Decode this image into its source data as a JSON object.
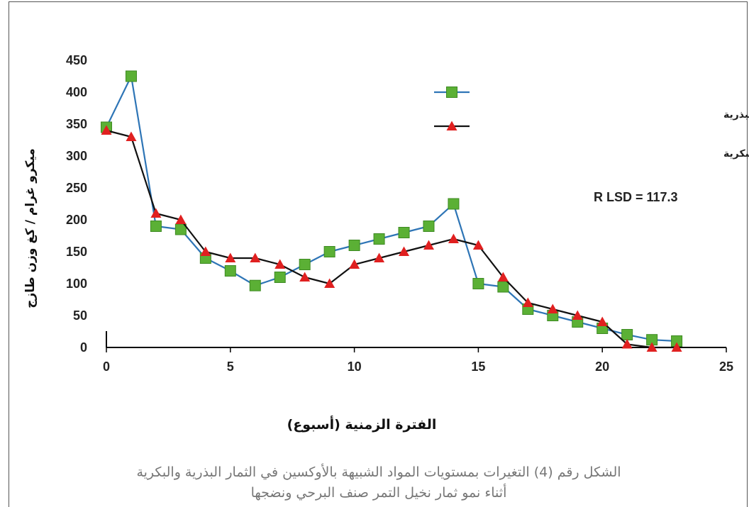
{
  "chart_data": {
    "type": "line",
    "xlabel": "الفترة الزمنية (أسبوع)",
    "ylabel": "ميكرو غرام / كغ وزن طازج",
    "xlim": [
      0,
      25
    ],
    "ylim": [
      0,
      450
    ],
    "x_ticks": [
      "0",
      "5",
      "10",
      "15",
      "20",
      "25"
    ],
    "y_ticks": [
      "0",
      "50",
      "100",
      "150",
      "200",
      "250",
      "300",
      "350",
      "400",
      "450"
    ],
    "grid": false,
    "legend_position": "top-right",
    "series": [
      {
        "name": "المواد الشبيهة بالأوكسينات في الثمار البذرية",
        "color": "#2E75B6",
        "marker": "square",
        "marker_color": "#5BB035",
        "x": [
          0,
          1,
          2,
          3,
          4,
          5,
          6,
          7,
          8,
          9,
          10,
          11,
          12,
          13,
          14,
          15,
          16,
          17,
          18,
          19,
          20,
          21,
          22,
          23
        ],
        "y": [
          345,
          425,
          190,
          185,
          140,
          120,
          97,
          110,
          130,
          150,
          160,
          170,
          180,
          190,
          225,
          100,
          95,
          60,
          50,
          40,
          30,
          20,
          12,
          10
        ]
      },
      {
        "name": "المواد الشبيهة بالأوكسينات في الثمار البكرية",
        "color": "#111111",
        "marker": "triangle",
        "marker_color": "#E02020",
        "x": [
          0,
          1,
          2,
          3,
          4,
          5,
          6,
          7,
          8,
          9,
          10,
          11,
          12,
          13,
          14,
          15,
          16,
          17,
          18,
          19,
          20,
          21,
          22,
          23
        ],
        "y": [
          340,
          330,
          210,
          200,
          150,
          140,
          140,
          130,
          110,
          100,
          130,
          140,
          150,
          160,
          170,
          160,
          110,
          70,
          60,
          50,
          40,
          5,
          0,
          0
        ]
      }
    ],
    "annotation": "R LSD = 117.3"
  },
  "caption": {
    "line1": "الشكل رقم (4) التغيرات بمستويات المواد الشبيهة بالأوكسين في الثمار البذرية والبكرية",
    "line2": "أثناء نمو ثمار نخيل التمر صنف البرحي ونضجها"
  }
}
